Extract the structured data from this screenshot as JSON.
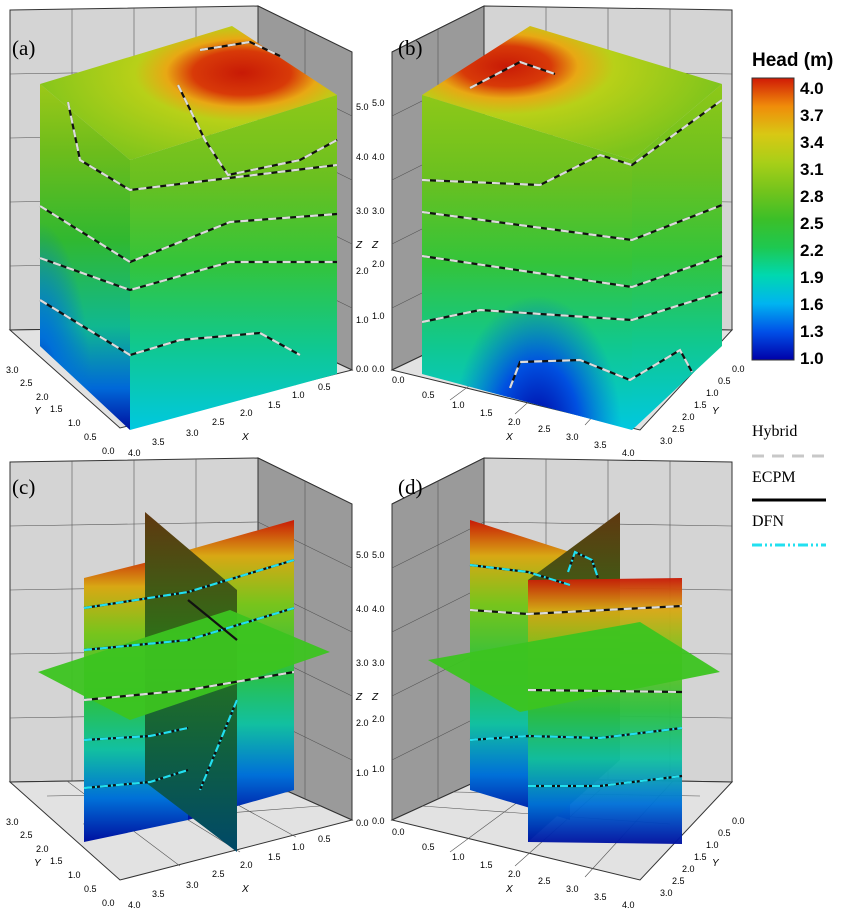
{
  "panels": [
    {
      "label": "(a)",
      "view": "left",
      "type": "block"
    },
    {
      "label": "(b)",
      "view": "right",
      "type": "block"
    },
    {
      "label": "(c)",
      "view": "left",
      "type": "slices"
    },
    {
      "label": "(d)",
      "view": "right",
      "type": "slices"
    }
  ],
  "axes": {
    "z_title": "Z",
    "x_title": "X",
    "y_title": "Y",
    "z_ticks": [
      "0.0",
      "1.0",
      "2.0",
      "3.0",
      "4.0",
      "5.0"
    ],
    "x_ticks": [
      "0.0",
      "0.5",
      "1.0",
      "1.5",
      "2.0",
      "2.5",
      "3.0",
      "3.5",
      "4.0"
    ],
    "y_ticks": [
      "0.0",
      "0.5",
      "1.0",
      "1.5",
      "2.0",
      "2.5",
      "3.0"
    ]
  },
  "colorbar": {
    "title": "Head (m)",
    "ticks": [
      "4.0",
      "3.7",
      "3.4",
      "3.1",
      "2.8",
      "2.5",
      "2.2",
      "1.9",
      "1.6",
      "1.3",
      "1.0"
    ],
    "colors": [
      "#0000a8",
      "#0050e8",
      "#00b4f0",
      "#00d8b0",
      "#1ec850",
      "#3cbf28",
      "#74c41c",
      "#a8cf18",
      "#d8c814",
      "#f08c0a",
      "#d01a06"
    ]
  },
  "legend": [
    {
      "label": "Hybrid",
      "color": "#c8c8c8",
      "style": "dashed"
    },
    {
      "label": "ECPM",
      "color": "#000000",
      "style": "solid"
    },
    {
      "label": "DFN",
      "color": "#22e0f0",
      "style": "dashdot"
    }
  ]
}
